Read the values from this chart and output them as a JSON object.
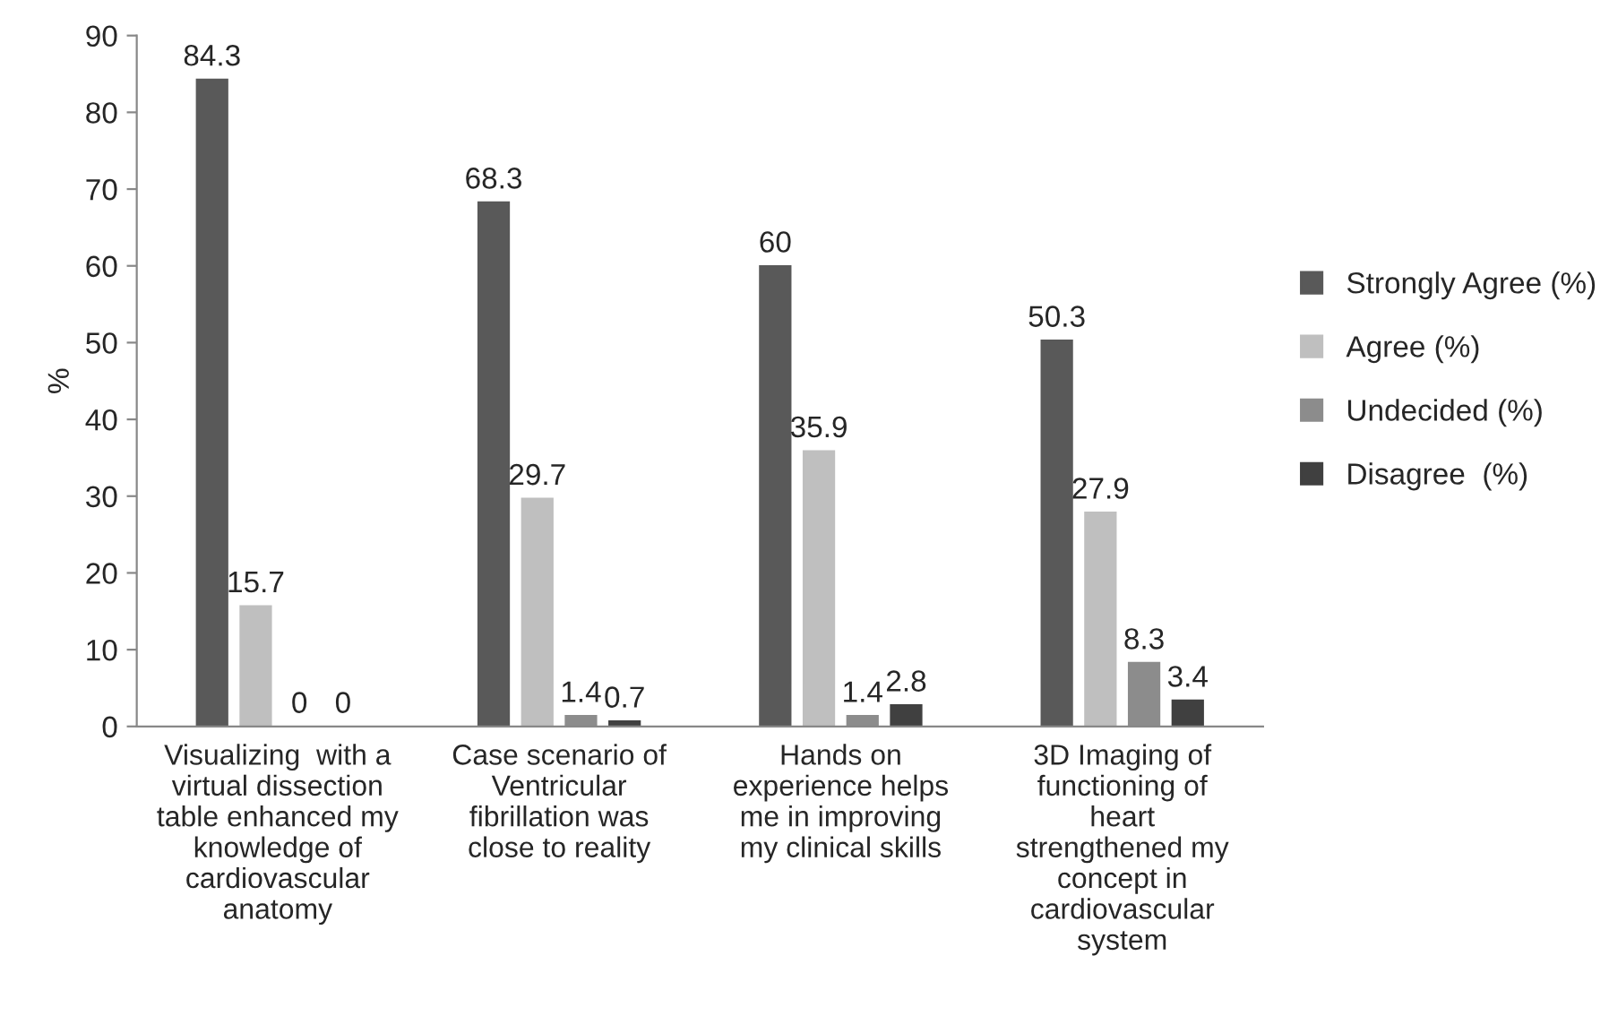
{
  "chart_data": {
    "type": "bar",
    "ylabel": "%",
    "categories": [
      "Visualizing  with a\nvirtual dissection\ntable enhanced my\nknowledge of\ncardiovascular\nanatomy",
      "Case scenario of\nVentricular\nfibrillation was\nclose to reality",
      "Hands on\nexperience helps\nme in improving\nmy clinical skills",
      "3D Imaging of\nfunctioning of\nheart\nstrengthened my\nconcept in\ncardiovascular\nsystem"
    ],
    "series": [
      {
        "name": "Strongly Agree (%)",
        "color": "#595959",
        "values": [
          84.3,
          68.3,
          60,
          50.3
        ]
      },
      {
        "name": "Agree (%)",
        "color": "#bfbfbf",
        "values": [
          15.7,
          29.7,
          35.9,
          27.9
        ]
      },
      {
        "name": "Undecided (%)",
        "color": "#8c8c8c",
        "values": [
          0,
          1.4,
          1.4,
          8.3
        ]
      },
      {
        "name": "Disagree  (%)",
        "color": "#404040",
        "values": [
          0,
          0.7,
          2.8,
          3.4
        ]
      }
    ],
    "ylim": [
      0,
      90
    ],
    "yticks": [
      0,
      10,
      20,
      30,
      40,
      50,
      60,
      70,
      80,
      90
    ],
    "data_labels": true,
    "grid": false,
    "legend": "right"
  }
}
